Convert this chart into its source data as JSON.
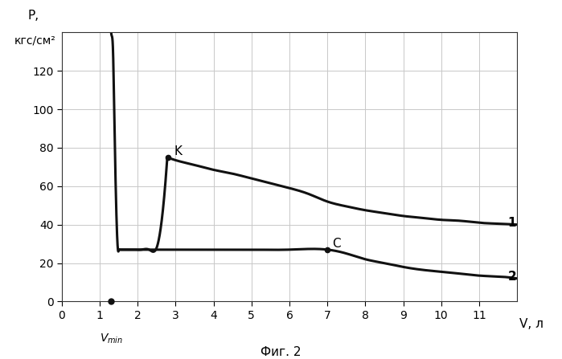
{
  "title": "Фиг. 2",
  "ylabel_line1": "P,",
  "ylabel_line2": "кгс/см²",
  "xlabel": "V, л",
  "xlim": [
    0,
    12
  ],
  "ylim": [
    0,
    140
  ],
  "xticks": [
    0,
    1,
    2,
    3,
    4,
    5,
    6,
    7,
    8,
    9,
    10,
    11
  ],
  "yticks": [
    0,
    20,
    40,
    60,
    80,
    100,
    120
  ],
  "curve1_label": "1",
  "curve2_label": "2",
  "point_K_label": "K",
  "point_C_label": "C",
  "point_K_x": 2.8,
  "point_K_y": 75,
  "point_C_x": 7.0,
  "point_C_y": 27,
  "vmin_x": 1.3,
  "background_color": "#ffffff",
  "line_color": "#111111",
  "grid_color": "#c8c8c8"
}
